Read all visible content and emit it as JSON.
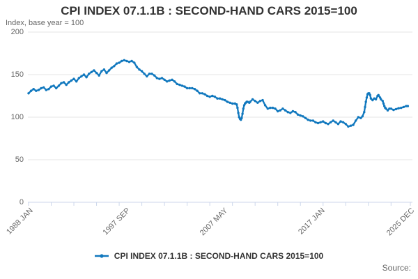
{
  "header": {
    "title": "CPI INDEX 07.1.1B : SECOND-HAND CARS 2015=100",
    "subtitle": "Index, base year = 100"
  },
  "legend": {
    "label": "CPI INDEX 07.1.1B : SECOND-HAND CARS 2015=100",
    "marker": "line-with-dot"
  },
  "source_label": "Source:",
  "colors": {
    "line": "#1178be",
    "grid": "#e6e6e6",
    "axis": "#ccd6eb",
    "title_text": "#333333",
    "muted_text": "#666666"
  },
  "chart_data": {
    "type": "line",
    "title": "CPI INDEX 07.1.1B : SECOND-HAND CARS 2015=100",
    "subtitle": "Index, base year = 100",
    "xlabel": "",
    "ylabel": "Index, base year = 100",
    "ylim": [
      0,
      200
    ],
    "yticks": [
      0,
      50,
      100,
      150,
      200
    ],
    "grid": "horizontal",
    "legend_position": "bottom",
    "x_start": "1988-01",
    "x_end": "2025-12",
    "x_tick_step_months": 27,
    "xtick_labels": [
      {
        "label": "1988 JAN",
        "month": "1988-01"
      },
      {
        "label": "1997 SEP",
        "month": "1997-09"
      },
      {
        "label": "2007 MAY",
        "month": "2007-05"
      },
      {
        "label": "2017 JAN",
        "month": "2017-01"
      },
      {
        "label": "2025 DEC",
        "month": "2025-12"
      }
    ],
    "series": [
      {
        "name": "CPI INDEX 07.1.1B : SECOND-HAND CARS 2015=100",
        "color": "#1178be",
        "points": [
          [
            "1988-01",
            128
          ],
          [
            "1988-04",
            131
          ],
          [
            "1988-07",
            133
          ],
          [
            "1988-10",
            131
          ],
          [
            "1989-01",
            132
          ],
          [
            "1989-04",
            134
          ],
          [
            "1989-07",
            135
          ],
          [
            "1989-10",
            132
          ],
          [
            "1990-01",
            133
          ],
          [
            "1990-04",
            136
          ],
          [
            "1990-07",
            137
          ],
          [
            "1990-10",
            134
          ],
          [
            "1991-01",
            137
          ],
          [
            "1991-04",
            140
          ],
          [
            "1991-07",
            141
          ],
          [
            "1991-10",
            138
          ],
          [
            "1992-01",
            141
          ],
          [
            "1992-04",
            143
          ],
          [
            "1992-07",
            145
          ],
          [
            "1992-10",
            142
          ],
          [
            "1993-01",
            146
          ],
          [
            "1993-04",
            148
          ],
          [
            "1993-07",
            150
          ],
          [
            "1993-10",
            147
          ],
          [
            "1994-01",
            151
          ],
          [
            "1994-04",
            153
          ],
          [
            "1994-07",
            155
          ],
          [
            "1994-10",
            152
          ],
          [
            "1995-01",
            149
          ],
          [
            "1995-04",
            154
          ],
          [
            "1995-07",
            156
          ],
          [
            "1995-10",
            152
          ],
          [
            "1996-01",
            155
          ],
          [
            "1996-04",
            158
          ],
          [
            "1996-07",
            160
          ],
          [
            "1996-10",
            163
          ],
          [
            "1997-01",
            164
          ],
          [
            "1997-04",
            166
          ],
          [
            "1997-07",
            167
          ],
          [
            "1997-10",
            166
          ],
          [
            "1998-01",
            165
          ],
          [
            "1998-04",
            166
          ],
          [
            "1998-07",
            164
          ],
          [
            "1998-10",
            159
          ],
          [
            "1999-01",
            156
          ],
          [
            "1999-04",
            154
          ],
          [
            "1999-07",
            151
          ],
          [
            "1999-10",
            148
          ],
          [
            "2000-01",
            151
          ],
          [
            "2000-04",
            151
          ],
          [
            "2000-07",
            149
          ],
          [
            "2000-10",
            146
          ],
          [
            "2001-01",
            145
          ],
          [
            "2001-04",
            146
          ],
          [
            "2001-07",
            144
          ],
          [
            "2001-10",
            142
          ],
          [
            "2002-01",
            143
          ],
          [
            "2002-04",
            144
          ],
          [
            "2002-07",
            142
          ],
          [
            "2002-10",
            139
          ],
          [
            "2003-01",
            138
          ],
          [
            "2003-04",
            137
          ],
          [
            "2003-07",
            136
          ],
          [
            "2003-10",
            134
          ],
          [
            "2004-01",
            134
          ],
          [
            "2004-04",
            134
          ],
          [
            "2004-07",
            133
          ],
          [
            "2004-10",
            131
          ],
          [
            "2005-01",
            128
          ],
          [
            "2005-04",
            128
          ],
          [
            "2005-07",
            127
          ],
          [
            "2005-10",
            125
          ],
          [
            "2006-01",
            124
          ],
          [
            "2006-04",
            125
          ],
          [
            "2006-07",
            124
          ],
          [
            "2006-10",
            122
          ],
          [
            "2007-01",
            122
          ],
          [
            "2007-04",
            121
          ],
          [
            "2007-07",
            120
          ],
          [
            "2007-10",
            118
          ],
          [
            "2008-01",
            117
          ],
          [
            "2008-04",
            116
          ],
          [
            "2008-07",
            116
          ],
          [
            "2008-09",
            115
          ],
          [
            "2008-10",
            111
          ],
          [
            "2008-11",
            105
          ],
          [
            "2008-12",
            100
          ],
          [
            "2009-01",
            98
          ],
          [
            "2009-02",
            97
          ],
          [
            "2009-03",
            99
          ],
          [
            "2009-04",
            104
          ],
          [
            "2009-05",
            110
          ],
          [
            "2009-06",
            114
          ],
          [
            "2009-07",
            116
          ],
          [
            "2009-08",
            117
          ],
          [
            "2009-09",
            118
          ],
          [
            "2009-10",
            118
          ],
          [
            "2009-12",
            117
          ],
          [
            "2010-01",
            118
          ],
          [
            "2010-04",
            121
          ],
          [
            "2010-07",
            119
          ],
          [
            "2010-10",
            117
          ],
          [
            "2011-01",
            119
          ],
          [
            "2011-04",
            120
          ],
          [
            "2011-07",
            114
          ],
          [
            "2011-10",
            110
          ],
          [
            "2012-01",
            111
          ],
          [
            "2012-04",
            111
          ],
          [
            "2012-07",
            110
          ],
          [
            "2012-10",
            107
          ],
          [
            "2013-01",
            108
          ],
          [
            "2013-04",
            110
          ],
          [
            "2013-07",
            108
          ],
          [
            "2013-10",
            106
          ],
          [
            "2014-01",
            105
          ],
          [
            "2014-04",
            107
          ],
          [
            "2014-07",
            106
          ],
          [
            "2014-10",
            103
          ],
          [
            "2015-01",
            102
          ],
          [
            "2015-04",
            101
          ],
          [
            "2015-07",
            99
          ],
          [
            "2015-10",
            97
          ],
          [
            "2016-01",
            96
          ],
          [
            "2016-04",
            96
          ],
          [
            "2016-07",
            94
          ],
          [
            "2016-10",
            93
          ],
          [
            "2017-01",
            94
          ],
          [
            "2017-04",
            95
          ],
          [
            "2017-07",
            93
          ],
          [
            "2017-10",
            92
          ],
          [
            "2018-01",
            94
          ],
          [
            "2018-04",
            96
          ],
          [
            "2018-07",
            94
          ],
          [
            "2018-10",
            92
          ],
          [
            "2019-01",
            95
          ],
          [
            "2019-04",
            94
          ],
          [
            "2019-07",
            92
          ],
          [
            "2019-10",
            89
          ],
          [
            "2020-01",
            90
          ],
          [
            "2020-04",
            91
          ],
          [
            "2020-07",
            96
          ],
          [
            "2020-10",
            100
          ],
          [
            "2021-01",
            99
          ],
          [
            "2021-03",
            101
          ],
          [
            "2021-05",
            106
          ],
          [
            "2021-06",
            112
          ],
          [
            "2021-07",
            118
          ],
          [
            "2021-08",
            123
          ],
          [
            "2021-09",
            127
          ],
          [
            "2021-10",
            128
          ],
          [
            "2021-11",
            128
          ],
          [
            "2021-12",
            126
          ],
          [
            "2022-01",
            122
          ],
          [
            "2022-03",
            120
          ],
          [
            "2022-05",
            122
          ],
          [
            "2022-07",
            121
          ],
          [
            "2022-09",
            125
          ],
          [
            "2022-10",
            126
          ],
          [
            "2022-12",
            123
          ],
          [
            "2023-01",
            121
          ],
          [
            "2023-03",
            119
          ],
          [
            "2023-04",
            116
          ],
          [
            "2023-05",
            113
          ],
          [
            "2023-06",
            111
          ],
          [
            "2023-07",
            110
          ],
          [
            "2023-09",
            108
          ],
          [
            "2023-11",
            110
          ],
          [
            "2024-01",
            110
          ],
          [
            "2024-04",
            108.5
          ],
          [
            "2024-07",
            109.5
          ],
          [
            "2024-10",
            110.5
          ],
          [
            "2025-01",
            111
          ],
          [
            "2025-04",
            112
          ],
          [
            "2025-07",
            113
          ],
          [
            "2025-09",
            113
          ]
        ]
      }
    ]
  }
}
